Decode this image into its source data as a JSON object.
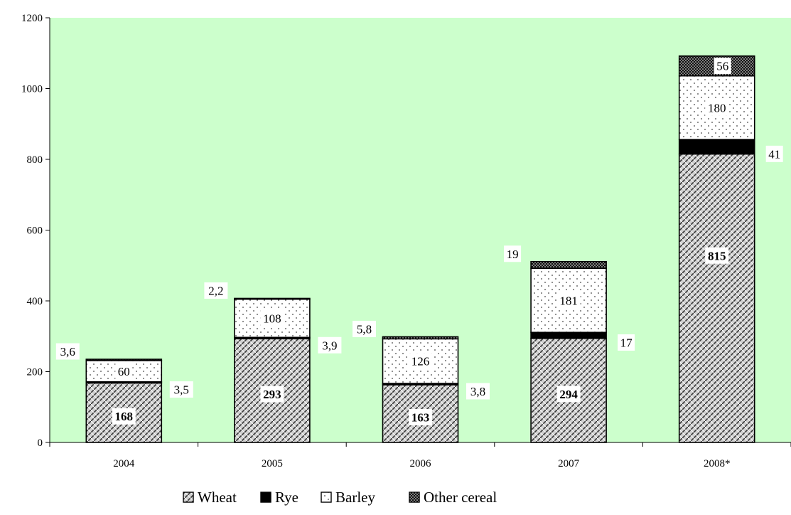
{
  "chart_data": {
    "type": "bar",
    "stacked": true,
    "title": "",
    "xlabel": "",
    "ylabel": "",
    "categories": [
      "2004",
      "2005",
      "2006",
      "2007",
      "2008*"
    ],
    "ylim": [
      0,
      1200
    ],
    "yticks": [
      "0",
      "200",
      "400",
      "600",
      "800",
      "1000",
      "1200"
    ],
    "plot_background": "#ccffcc",
    "grid": false,
    "legend_position": "bottom",
    "series": [
      {
        "name": "Wheat",
        "pattern": "hatch",
        "values": [
          168,
          293,
          163,
          294,
          815
        ],
        "labels": [
          "168",
          "293",
          "163",
          "294",
          "815"
        ]
      },
      {
        "name": "Rye",
        "pattern": "solid-black",
        "values": [
          3.5,
          3.9,
          3.8,
          17,
          41
        ],
        "labels": [
          "3,5",
          "3,9",
          "3,8",
          "17",
          "41"
        ]
      },
      {
        "name": "Barley",
        "pattern": "dots",
        "values": [
          60,
          108,
          126,
          181,
          180
        ],
        "labels": [
          "60",
          "108",
          "126",
          "181",
          "180"
        ]
      },
      {
        "name": "Other cereal",
        "pattern": "dense-dots",
        "values": [
          3.6,
          2.2,
          5.8,
          19,
          56
        ],
        "labels": [
          "3,6",
          "2,2",
          "5,8",
          "19",
          "56"
        ]
      }
    ]
  }
}
